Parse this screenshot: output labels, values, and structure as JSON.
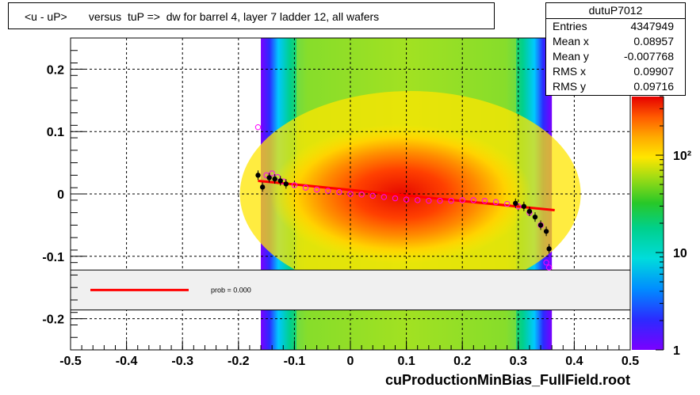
{
  "title": "<u - uP>       versus  tuP =>  dw for barrel 4, layer 7 ladder 12, all wafers",
  "footer": "cuProductionMinBias_FullField.root",
  "stats": {
    "name": "dutuP7012",
    "rows": [
      {
        "label": "Entries",
        "value": "4347949"
      },
      {
        "label": "Mean x",
        "value": "0.08957"
      },
      {
        "label": "Mean y",
        "value": "-0.007768"
      },
      {
        "label": "RMS x",
        "value": "0.09907"
      },
      {
        "label": "RMS y",
        "value": "0.09716"
      }
    ]
  },
  "legend": {
    "fit_label": "prob = 0.000"
  },
  "colorbar": {
    "scale": "log",
    "tick_labels": [
      {
        "value": 1,
        "text": "1"
      },
      {
        "value": 10,
        "text": "10"
      },
      {
        "value": 100,
        "text": "10²"
      }
    ]
  },
  "colors": {
    "fit_line": "#ff0000",
    "profile_points": "#000000",
    "markers": "#ff00ff",
    "legend_bg": "#f0f0f0"
  },
  "chart_data": {
    "type": "heatmap",
    "title": "<u - uP>       versus  tuP =>  dw for barrel 4, layer 7 ladder 12, all wafers",
    "xlim": [
      -0.5,
      0.5
    ],
    "ylim": [
      -0.25,
      0.25
    ],
    "x_ticks": [
      -0.5,
      -0.4,
      -0.3,
      -0.2,
      -0.1,
      0,
      0.1,
      0.2,
      0.3,
      0.4,
      0.5
    ],
    "x_tick_labels": [
      "-0.5",
      "-0.4",
      "-0.3",
      "-0.2",
      "-0.1",
      "0",
      "0.1",
      "0.2",
      "0.3",
      "0.4",
      "0.5"
    ],
    "y_ticks": [
      -0.2,
      -0.1,
      0,
      0.1,
      0.2
    ],
    "y_tick_labels": [
      "-0.2",
      "-0.1",
      "0",
      "0.1",
      "0.2"
    ],
    "grid": true,
    "heatmap_x_range": [
      -0.16,
      0.36
    ],
    "fit_line": {
      "x": [
        -0.165,
        0.365
      ],
      "y": [
        0.021,
        -0.026
      ]
    },
    "profile_points": [
      {
        "x": -0.165,
        "y": 0.03
      },
      {
        "x": -0.157,
        "y": 0.011
      },
      {
        "x": -0.145,
        "y": 0.026
      },
      {
        "x": -0.135,
        "y": 0.024
      },
      {
        "x": -0.125,
        "y": 0.021
      },
      {
        "x": -0.115,
        "y": 0.016
      },
      {
        "x": 0.295,
        "y": -0.015
      },
      {
        "x": 0.31,
        "y": -0.02
      },
      {
        "x": 0.32,
        "y": -0.028
      },
      {
        "x": 0.33,
        "y": -0.037
      },
      {
        "x": 0.34,
        "y": -0.05
      },
      {
        "x": 0.35,
        "y": -0.06
      },
      {
        "x": 0.355,
        "y": -0.088
      }
    ],
    "marker_points": [
      {
        "x": -0.165,
        "y": 0.107
      },
      {
        "x": -0.15,
        "y": 0.03
      },
      {
        "x": -0.14,
        "y": 0.033
      },
      {
        "x": -0.13,
        "y": 0.027
      },
      {
        "x": -0.12,
        "y": 0.02
      },
      {
        "x": -0.1,
        "y": 0.014
      },
      {
        "x": -0.08,
        "y": 0.01
      },
      {
        "x": -0.06,
        "y": 0.007
      },
      {
        "x": -0.04,
        "y": 0.005
      },
      {
        "x": -0.02,
        "y": 0.003
      },
      {
        "x": 0.0,
        "y": 0.0
      },
      {
        "x": 0.02,
        "y": -0.001
      },
      {
        "x": 0.04,
        "y": -0.003
      },
      {
        "x": 0.06,
        "y": -0.005
      },
      {
        "x": 0.08,
        "y": -0.007
      },
      {
        "x": 0.1,
        "y": -0.009
      },
      {
        "x": 0.12,
        "y": -0.01
      },
      {
        "x": 0.14,
        "y": -0.011
      },
      {
        "x": 0.16,
        "y": -0.011
      },
      {
        "x": 0.18,
        "y": -0.011
      },
      {
        "x": 0.2,
        "y": -0.01
      },
      {
        "x": 0.22,
        "y": -0.01
      },
      {
        "x": 0.24,
        "y": -0.011
      },
      {
        "x": 0.26,
        "y": -0.013
      },
      {
        "x": 0.28,
        "y": -0.016
      },
      {
        "x": 0.3,
        "y": -0.02
      },
      {
        "x": 0.32,
        "y": -0.03
      },
      {
        "x": 0.34,
        "y": -0.05
      },
      {
        "x": 0.35,
        "y": -0.11
      },
      {
        "x": 0.355,
        "y": -0.118
      }
    ]
  }
}
